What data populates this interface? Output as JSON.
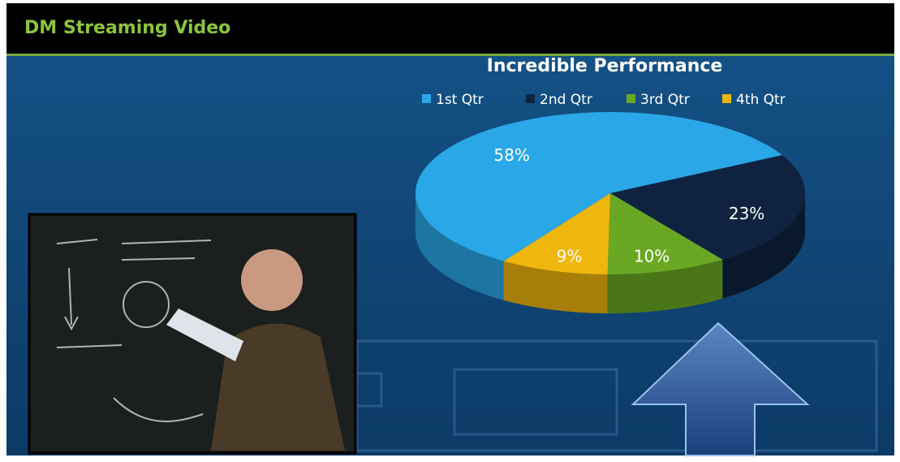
{
  "header": {
    "title": "DM Streaming Video"
  },
  "chart_data": {
    "type": "pie",
    "title": "Incredible Performance",
    "categories": [
      "1st Qtr",
      "2nd Qtr",
      "3rd Qtr",
      "4th Qtr"
    ],
    "values": [
      58,
      23,
      10,
      9
    ],
    "value_labels": [
      "58%",
      "23%",
      "10%",
      "9%"
    ],
    "colors": [
      "#2aa7e6",
      "#0f2340",
      "#6aa823",
      "#efb60c"
    ],
    "legend": "top"
  }
}
